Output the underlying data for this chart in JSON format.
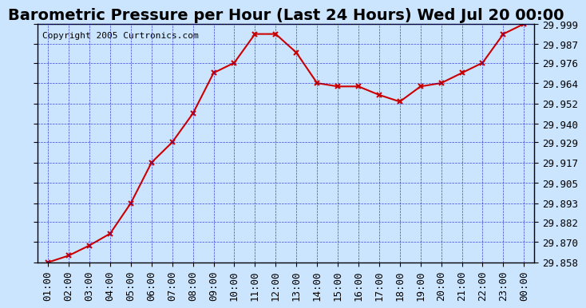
{
  "title": "Barometric Pressure per Hour (Last 24 Hours) Wed Jul 20 00:00",
  "copyright": "Copyright 2005 Curtronics.com",
  "x_labels": [
    "01:00",
    "02:00",
    "03:00",
    "04:00",
    "05:00",
    "06:00",
    "07:00",
    "08:00",
    "09:00",
    "10:00",
    "11:00",
    "12:00",
    "13:00",
    "14:00",
    "15:00",
    "16:00",
    "17:00",
    "18:00",
    "19:00",
    "20:00",
    "21:00",
    "22:00",
    "23:00",
    "00:00"
  ],
  "y_values": [
    29.858,
    29.862,
    29.868,
    29.875,
    29.893,
    29.917,
    29.929,
    29.946,
    29.97,
    29.976,
    29.993,
    29.993,
    29.982,
    29.964,
    29.962,
    29.962,
    29.957,
    29.953,
    29.962,
    29.964,
    29.97,
    29.976,
    29.993,
    29.999
  ],
  "y_ticks": [
    29.858,
    29.87,
    29.882,
    29.893,
    29.905,
    29.917,
    29.929,
    29.94,
    29.952,
    29.964,
    29.976,
    29.987,
    29.999
  ],
  "line_color": "#cc0000",
  "marker_color": "#cc0000",
  "bg_color": "#cce5ff",
  "plot_bg_color": "#cce5ff",
  "grid_color": "#0000cc",
  "title_fontsize": 14,
  "copyright_fontsize": 8,
  "tick_fontsize": 9,
  "y_label_fontsize": 9,
  "border_color": "#000000",
  "ylim_min": 29.858,
  "ylim_max": 29.999
}
